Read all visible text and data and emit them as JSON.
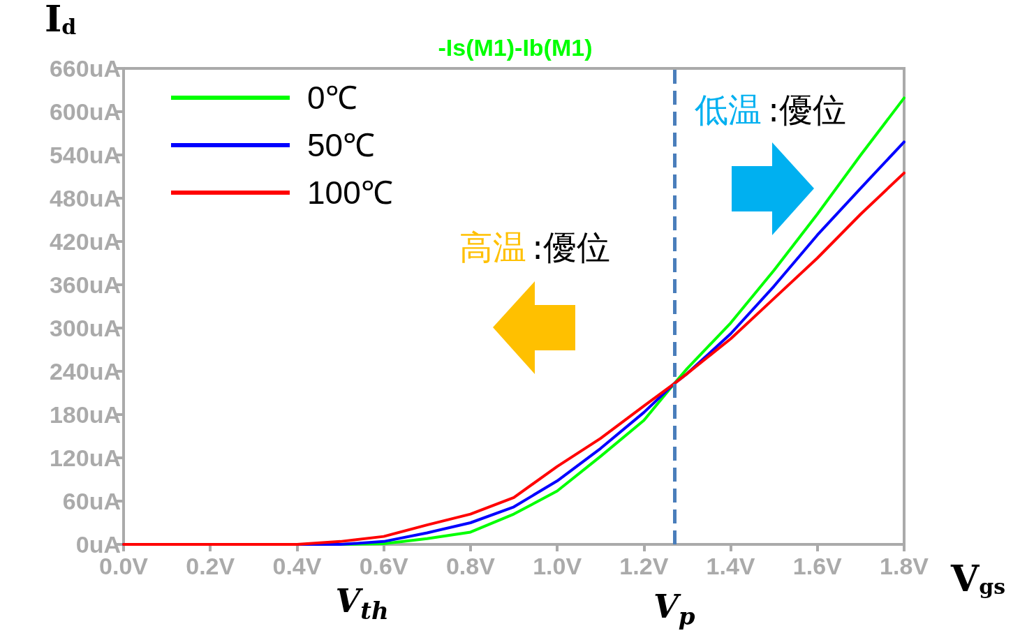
{
  "chart_data": {
    "type": "line",
    "title": "-Is(M1)-Ib(M1)",
    "xlabel": "V$_{gs}$",
    "ylabel": "I$_{d}$",
    "x": [
      0,
      0.4,
      0.5,
      0.6,
      0.7,
      0.8,
      0.9,
      1.0,
      1.1,
      1.2,
      1.27,
      1.3,
      1.4,
      1.5,
      1.6,
      1.7,
      1.8
    ],
    "series": [
      {
        "name": "0℃",
        "color": "#00ff00",
        "values": [
          0,
          0,
          0,
          1,
          8,
          17,
          42,
          74,
          122,
          172,
          223,
          244,
          307,
          380,
          458,
          540,
          619
        ]
      },
      {
        "name": "50℃",
        "color": "#0000ff",
        "values": [
          0,
          0,
          0,
          4,
          16,
          30,
          52,
          88,
          133,
          183,
          223,
          237,
          292,
          358,
          429,
          494,
          558
        ]
      },
      {
        "name": "100℃",
        "color": "#ff0000",
        "values": [
          0,
          0,
          4,
          11,
          27,
          42,
          65,
          108,
          147,
          192,
          223,
          237,
          285,
          341,
          397,
          458,
          515
        ]
      }
    ],
    "xlim": [
      0,
      1.8
    ],
    "xticks": [
      {
        "value": 0,
        "label": "0.0V"
      },
      {
        "value": 0.2,
        "label": "0.2V"
      },
      {
        "value": 0.4,
        "label": "0.4V"
      },
      {
        "value": 0.6,
        "label": "0.6V"
      },
      {
        "value": 0.8,
        "label": "0.8V"
      },
      {
        "value": 1.0,
        "label": "1.0V"
      },
      {
        "value": 1.2,
        "label": "1.2V"
      },
      {
        "value": 1.4,
        "label": "1.4V"
      },
      {
        "value": 1.6,
        "label": "1.6V"
      },
      {
        "value": 1.8,
        "label": "1.8V"
      }
    ],
    "ylim": [
      0,
      660
    ],
    "yticks": [
      {
        "value": 0,
        "label": "0uA"
      },
      {
        "value": 60,
        "label": "60uA"
      },
      {
        "value": 120,
        "label": "120uA"
      },
      {
        "value": 180,
        "label": "180uA"
      },
      {
        "value": 240,
        "label": "240uA"
      },
      {
        "value": 300,
        "label": "300uA"
      },
      {
        "value": 360,
        "label": "360uA"
      },
      {
        "value": 420,
        "label": "420uA"
      },
      {
        "value": 480,
        "label": "480uA"
      },
      {
        "value": 540,
        "label": "540uA"
      },
      {
        "value": 600,
        "label": "600uA"
      },
      {
        "value": 660,
        "label": "660uA"
      }
    ],
    "ref_lines": [
      {
        "axis": "x",
        "value": 1.27,
        "label": "V$_{p}$",
        "color": "#4a7ebb",
        "line_style": "dashed"
      }
    ],
    "annotations": [
      {
        "text": "V$_{th}$",
        "x": 0.55,
        "y": 0
      },
      "高温",
      ":優位",
      "低温",
      ":優位"
    ],
    "grid": false,
    "legend": "top left",
    "marker": "none",
    "line_style": "solid"
  }
}
